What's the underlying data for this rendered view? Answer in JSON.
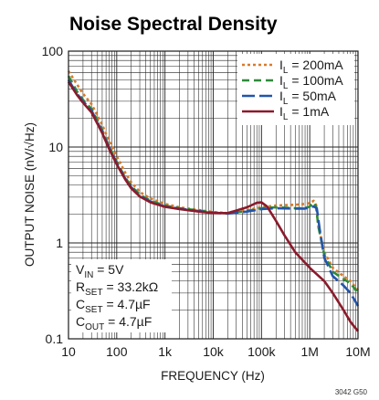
{
  "chart_data": {
    "type": "line",
    "title": "Noise Spectral Density",
    "xlabel": "FREQUENCY (Hz)",
    "ylabel": "OUTPUT NOISE (nV/√Hz)",
    "x_scale": "log",
    "y_scale": "log",
    "xlim": [
      10,
      10000000
    ],
    "ylim": [
      0.1,
      100
    ],
    "grid": true,
    "legend_position": "top-right",
    "x_ticks": [
      {
        "value": 10,
        "label": "10"
      },
      {
        "value": 100,
        "label": "100"
      },
      {
        "value": 1000,
        "label": "1k"
      },
      {
        "value": 10000,
        "label": "10k"
      },
      {
        "value": 100000,
        "label": "100k"
      },
      {
        "value": 1000000,
        "label": "1M"
      },
      {
        "value": 10000000,
        "label": "10M"
      }
    ],
    "y_ticks": [
      {
        "value": 100,
        "label": "100"
      },
      {
        "value": 10,
        "label": "10"
      },
      {
        "value": 1,
        "label": "1"
      },
      {
        "value": 0.1,
        "label": "0.1"
      }
    ],
    "series": [
      {
        "name_main": "I",
        "name_sub": "L",
        "name_value": " = 200mA",
        "color": "#d97a2b",
        "dash": "3,3",
        "points": [
          [
            10,
            62
          ],
          [
            15,
            45
          ],
          [
            20,
            36
          ],
          [
            30,
            28
          ],
          [
            50,
            17
          ],
          [
            70,
            11.5
          ],
          [
            100,
            8
          ],
          [
            150,
            5.4
          ],
          [
            200,
            4.3
          ],
          [
            300,
            3.4
          ],
          [
            500,
            2.9
          ],
          [
            1000,
            2.55
          ],
          [
            2000,
            2.35
          ],
          [
            5000,
            2.2
          ],
          [
            10000,
            2.1
          ],
          [
            20000,
            2.05
          ],
          [
            50000,
            2.2
          ],
          [
            100000,
            2.35
          ],
          [
            200000,
            2.45
          ],
          [
            500000,
            2.5
          ],
          [
            800000,
            2.55
          ],
          [
            1000000,
            2.6
          ],
          [
            1200000,
            2.75
          ],
          [
            1350000,
            2.5
          ],
          [
            1500000,
            1.5
          ],
          [
            2000000,
            0.8
          ],
          [
            3000000,
            0.55
          ],
          [
            5000000,
            0.45
          ],
          [
            7000000,
            0.4
          ],
          [
            10000000,
            0.32
          ]
        ]
      },
      {
        "name_main": "I",
        "name_sub": "L",
        "name_value": " = 100mA",
        "color": "#2e8b3a",
        "dash": "8,5",
        "points": [
          [
            10,
            55
          ],
          [
            15,
            38
          ],
          [
            20,
            31
          ],
          [
            30,
            25
          ],
          [
            50,
            15
          ],
          [
            70,
            10
          ],
          [
            100,
            7
          ],
          [
            150,
            4.8
          ],
          [
            200,
            3.9
          ],
          [
            300,
            3.2
          ],
          [
            500,
            2.75
          ],
          [
            1000,
            2.45
          ],
          [
            2000,
            2.3
          ],
          [
            5000,
            2.18
          ],
          [
            10000,
            2.08
          ],
          [
            20000,
            2.03
          ],
          [
            50000,
            2.15
          ],
          [
            100000,
            2.3
          ],
          [
            200000,
            2.35
          ],
          [
            500000,
            2.3
          ],
          [
            800000,
            2.3
          ],
          [
            1000000,
            2.4
          ],
          [
            1200000,
            2.65
          ],
          [
            1350000,
            2.4
          ],
          [
            1500000,
            1.5
          ],
          [
            2000000,
            0.75
          ],
          [
            3000000,
            0.5
          ],
          [
            5000000,
            0.42
          ],
          [
            7000000,
            0.38
          ],
          [
            10000000,
            0.3
          ]
        ]
      },
      {
        "name_main": "I",
        "name_sub": "L",
        "name_value": " = 50mA",
        "color": "#2255aa",
        "dash": "14,5",
        "points": [
          [
            10,
            50
          ],
          [
            15,
            36
          ],
          [
            20,
            30
          ],
          [
            30,
            24
          ],
          [
            50,
            14.5
          ],
          [
            70,
            9.8
          ],
          [
            100,
            6.8
          ],
          [
            150,
            4.7
          ],
          [
            200,
            3.8
          ],
          [
            300,
            3.1
          ],
          [
            500,
            2.7
          ],
          [
            1000,
            2.4
          ],
          [
            2000,
            2.28
          ],
          [
            5000,
            2.15
          ],
          [
            10000,
            2.06
          ],
          [
            20000,
            2.02
          ],
          [
            50000,
            2.12
          ],
          [
            100000,
            2.25
          ],
          [
            200000,
            2.3
          ],
          [
            500000,
            2.28
          ],
          [
            800000,
            2.28
          ],
          [
            1000000,
            2.35
          ],
          [
            1200000,
            2.4
          ],
          [
            1400000,
            2.3
          ],
          [
            1600000,
            1.4
          ],
          [
            2000000,
            0.7
          ],
          [
            3000000,
            0.45
          ],
          [
            5000000,
            0.36
          ],
          [
            7000000,
            0.3
          ],
          [
            10000000,
            0.22
          ]
        ]
      },
      {
        "name_main": "I",
        "name_sub": "L",
        "name_value": " = 1mA",
        "color": "#8b1a2b",
        "dash": "",
        "points": [
          [
            10,
            48
          ],
          [
            15,
            35
          ],
          [
            20,
            29
          ],
          [
            30,
            23
          ],
          [
            50,
            14
          ],
          [
            70,
            9.5
          ],
          [
            100,
            6.6
          ],
          [
            150,
            4.6
          ],
          [
            200,
            3.7
          ],
          [
            300,
            3.05
          ],
          [
            500,
            2.65
          ],
          [
            1000,
            2.38
          ],
          [
            2000,
            2.25
          ],
          [
            5000,
            2.12
          ],
          [
            10000,
            2.05
          ],
          [
            20000,
            2.05
          ],
          [
            50000,
            2.35
          ],
          [
            80000,
            2.62
          ],
          [
            100000,
            2.65
          ],
          [
            130000,
            2.4
          ],
          [
            200000,
            1.7
          ],
          [
            300000,
            1.2
          ],
          [
            500000,
            0.8
          ],
          [
            1000000,
            0.55
          ],
          [
            2000000,
            0.4
          ],
          [
            3000000,
            0.3
          ],
          [
            5000000,
            0.2
          ],
          [
            7000000,
            0.15
          ],
          [
            10000000,
            0.12
          ]
        ]
      }
    ],
    "annotations": [
      {
        "main": "V",
        "sub": "IN",
        "value": " = 5V"
      },
      {
        "main": "R",
        "sub": "SET",
        "value": " = 33.2kΩ"
      },
      {
        "main": "C",
        "sub": "SET",
        "value": " = 4.7µF"
      },
      {
        "main": "C",
        "sub": "OUT",
        "value": " = 4.7µF"
      }
    ],
    "figure_id": "3042 G50"
  }
}
